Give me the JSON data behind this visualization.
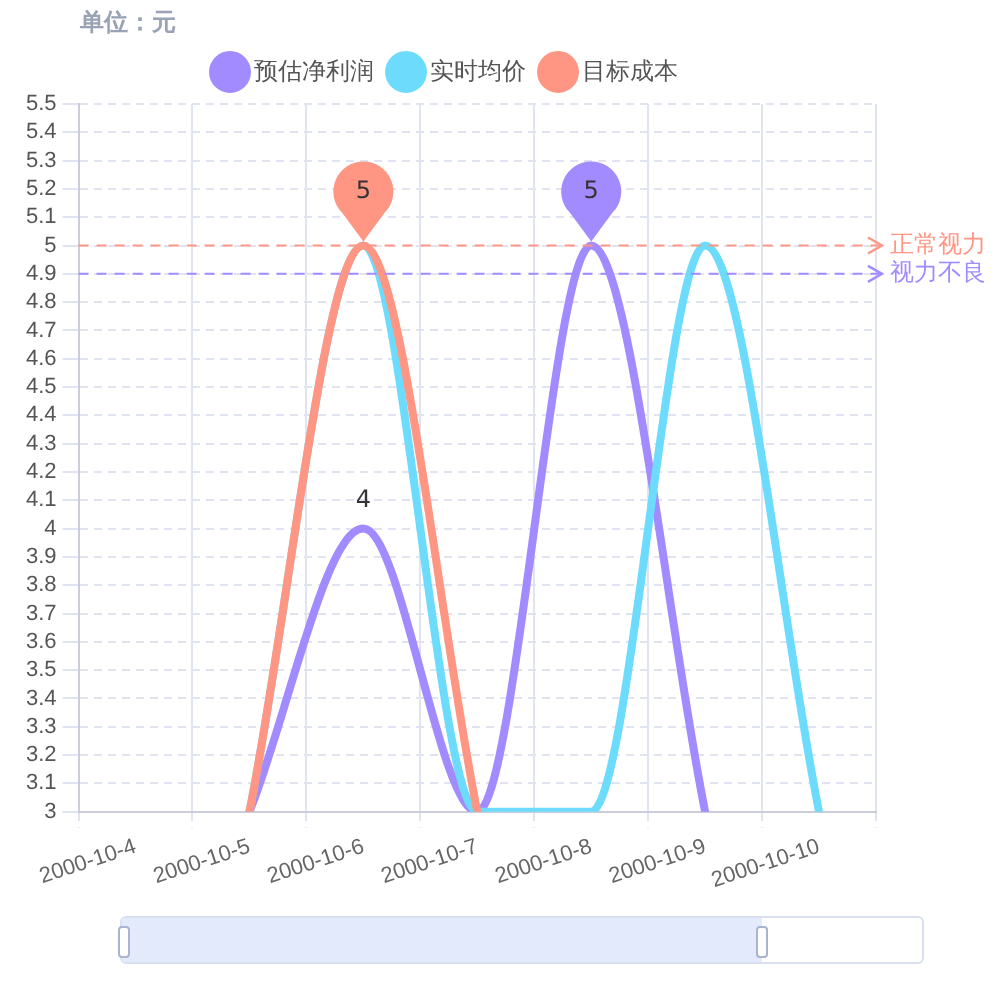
{
  "chart_data": {
    "type": "line",
    "ylabel": "单位：元",
    "categories": [
      "2000-10-4",
      "2000-10-5",
      "2000-10-6",
      "2000-10-7",
      "2000-10-8",
      "2000-10-9",
      "2000-10-10"
    ],
    "series": [
      {
        "name": "预估净利润",
        "color": "#a18bff",
        "values": [
          null,
          3,
          4,
          3,
          5,
          3,
          null
        ],
        "value_labels": [
          null,
          null,
          "4",
          null,
          null,
          null,
          null
        ]
      },
      {
        "name": "实时均价",
        "color": "#6ddcfc",
        "values": [
          null,
          3,
          5,
          3,
          3,
          5,
          3
        ]
      },
      {
        "name": "目标成本",
        "color": "#ff9684",
        "values": [
          null,
          3,
          5,
          3,
          null,
          null,
          null
        ]
      }
    ],
    "ylim": [
      3,
      5.5
    ],
    "yticks": [
      3,
      3.1,
      3.2,
      3.3,
      3.4,
      3.5,
      3.6,
      3.7,
      3.8,
      3.9,
      4,
      4.1,
      4.2,
      4.3,
      4.4,
      4.5,
      4.6,
      4.7,
      4.8,
      4.9,
      5,
      5.1,
      5.2,
      5.3,
      5.4,
      5.5
    ],
    "ref_lines": [
      {
        "axis": "y",
        "value": 5,
        "label": "正常视力",
        "color": "#ff9684",
        "line_style": "dashed"
      },
      {
        "axis": "y",
        "value": 4.9,
        "label": "视力不良",
        "color": "#a18bff",
        "line_style": "dashed"
      }
    ],
    "annotations": [
      {
        "text": "5",
        "x": "2000-10-6",
        "y": 5
      },
      {
        "text": "5",
        "x": "2000-10-8",
        "y": 5
      }
    ],
    "grid": true,
    "legend": "top",
    "marker": "none",
    "line_style": "solid"
  }
}
